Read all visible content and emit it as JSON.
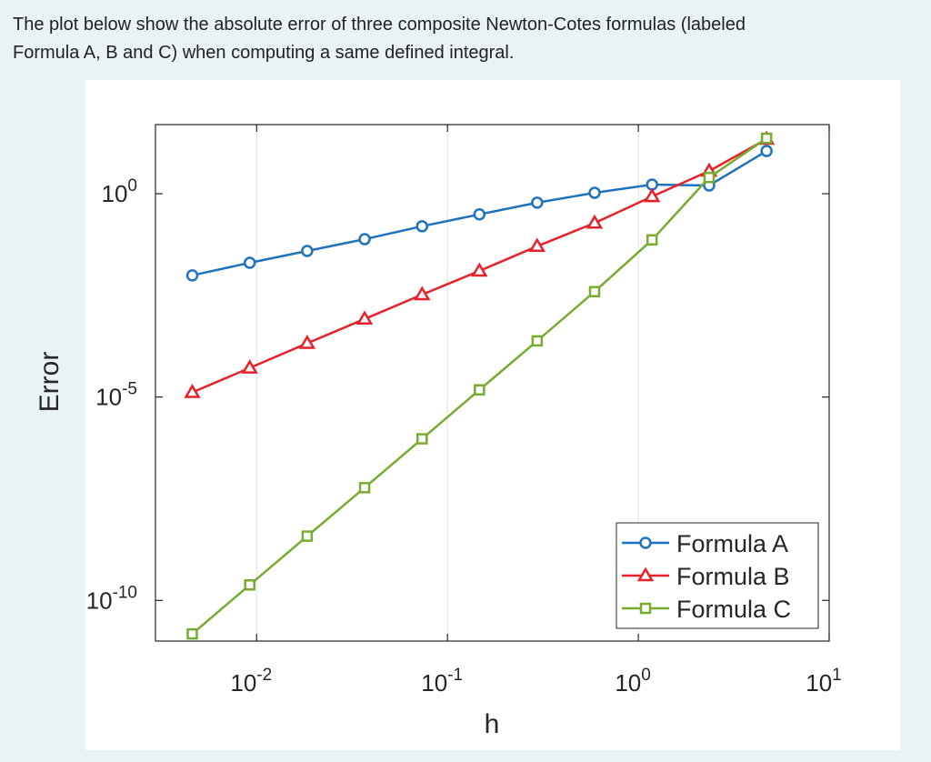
{
  "question": {
    "lines": [
      "The plot below show the absolute error of three composite Newton-Cotes formulas (labeled",
      "Formula A, B and C) when computing a same defined integral."
    ]
  },
  "chart_data": {
    "type": "line",
    "xscale": "log",
    "yscale": "log",
    "xgrid": true,
    "legend": "lower right",
    "xlabel": "h",
    "ylabel": "Error",
    "x": [
      0.0046,
      0.0092,
      0.0184,
      0.0368,
      0.0736,
      0.147,
      0.295,
      0.59,
      1.18,
      2.35,
      4.7
    ],
    "xlim": [
      0.00295,
      10
    ],
    "xticks": [
      {
        "value": 0.01,
        "label": "10^-2"
      },
      {
        "value": 0.1,
        "label": "10^-1"
      },
      {
        "value": 1,
        "label": "10^0"
      },
      {
        "value": 10,
        "label": "10^1"
      }
    ],
    "ylim": [
      1e-11,
      50
    ],
    "yticks": [
      {
        "value": 1e-10,
        "label": "10^-10"
      },
      {
        "value": 1e-05,
        "label": "10^-5"
      },
      {
        "value": 1,
        "label": "10^0"
      }
    ],
    "series": [
      {
        "name": "Formula A",
        "color": "#1f72bd",
        "marker": "circle",
        "values": [
          0.0098,
          0.02,
          0.039,
          0.076,
          0.158,
          0.31,
          0.6,
          1.05,
          1.67,
          1.59,
          11.2
        ]
      },
      {
        "name": "Formula B",
        "color": "#e8202a",
        "marker": "triangle",
        "values": [
          1.3e-05,
          5.2e-05,
          0.00021,
          0.00083,
          0.0033,
          0.0126,
          0.051,
          0.19,
          0.85,
          3.6,
          22
        ]
      },
      {
        "name": "Formula C",
        "color": "#77ac30",
        "marker": "square",
        "values": [
          1.5e-11,
          2.4e-10,
          3.8e-09,
          5.9e-08,
          9.4e-07,
          1.5e-05,
          0.00024,
          0.0039,
          0.073,
          2.5,
          23
        ]
      }
    ]
  }
}
